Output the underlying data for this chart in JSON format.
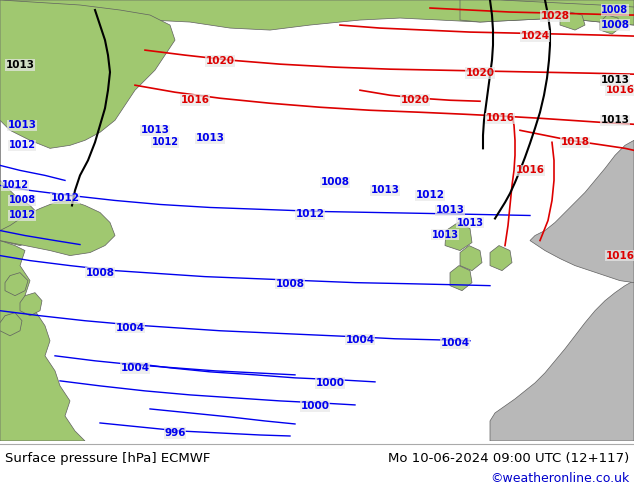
{
  "title_left": "Surface pressure [hPa] ECMWF",
  "title_right": "Mo 10-06-2024 09:00 UTC (12+117)",
  "copyright": "©weatheronline.co.uk",
  "bg_ocean": "#e8e8e8",
  "land_green": "#a0c870",
  "land_grey": "#b8b8b8",
  "border_color": "#606060",
  "bottom_bg": "#ffffff",
  "copyright_color": "#0000cc",
  "isobar_blue": "#0000ee",
  "isobar_red": "#dd0000",
  "isobar_black": "#000000",
  "fig_width": 6.34,
  "fig_height": 4.9,
  "dpi": 100
}
